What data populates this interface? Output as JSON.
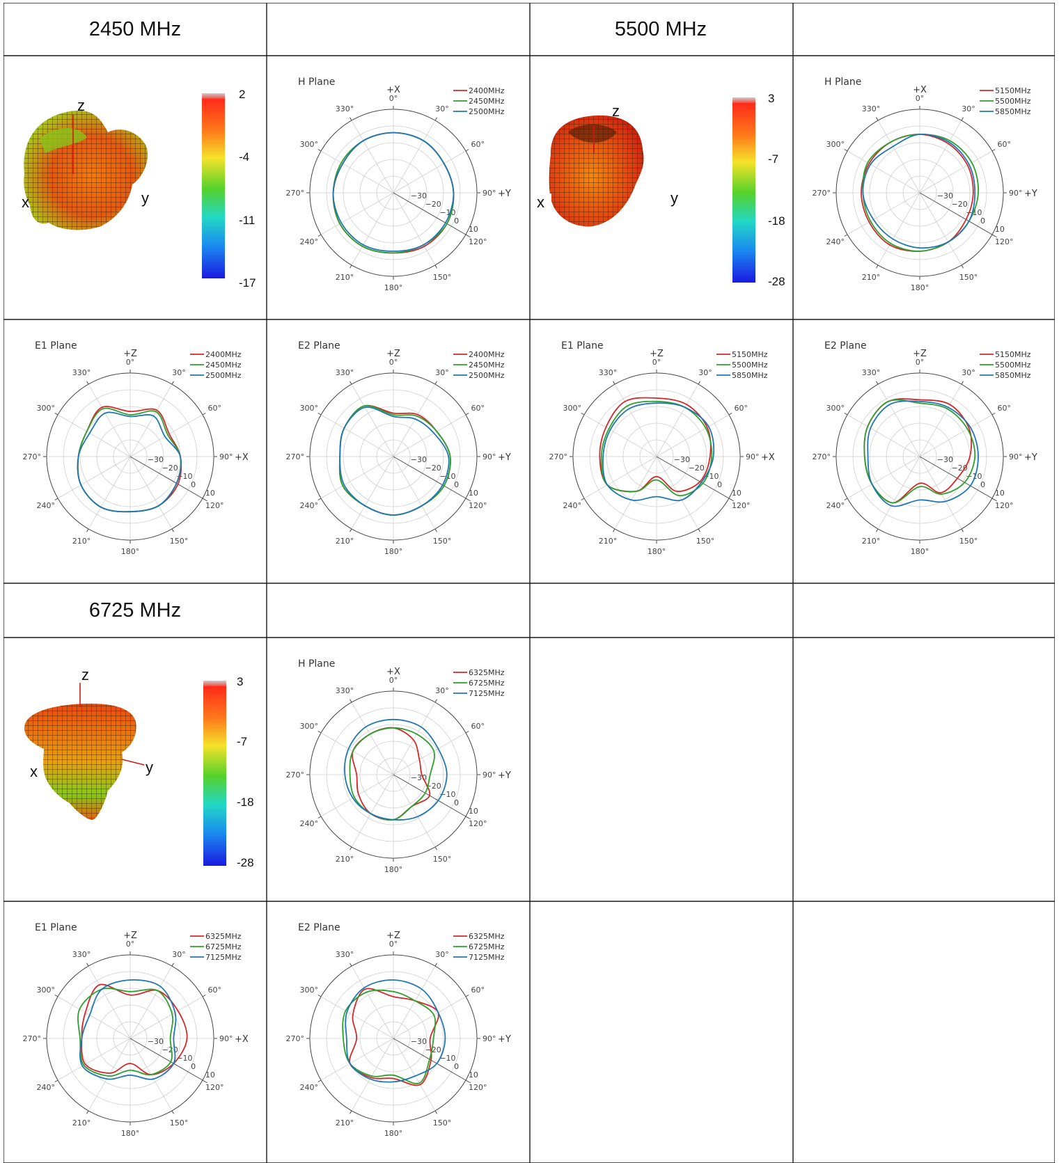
{
  "headers": [
    "2450 MHz",
    "",
    "5500 MHz",
    "",
    "6725 MHz",
    "",
    "",
    ""
  ],
  "colors": {
    "red": "#d62728",
    "green": "#2ca02c",
    "blue": "#1f77b4",
    "grid": "#cfcfcf",
    "border": "#1a1a1a"
  },
  "patterns3d": [
    {
      "band": "2450 MHz",
      "colorbar_ticks": [
        "2",
        "-4",
        "-11",
        "-17"
      ],
      "axes": [
        "z",
        "x",
        "y"
      ]
    },
    {
      "band": "5500 MHz",
      "colorbar_ticks": [
        "3",
        "-7",
        "-18",
        "-28"
      ],
      "axes": [
        "z",
        "x",
        "y"
      ]
    },
    {
      "band": "6725 MHz",
      "colorbar_ticks": [
        "3",
        "-7",
        "-18",
        "-28"
      ],
      "axes": [
        "z",
        "x",
        "y"
      ]
    }
  ],
  "chart_data": [
    {
      "id": "h_2450",
      "type": "polar",
      "title": "H Plane",
      "top_label": "+X",
      "right_label": "+Y",
      "angle_ticks": [
        "0°",
        "30°",
        "60°",
        "90°",
        "120°",
        "150°",
        "180°",
        "210°",
        "240°",
        "270°",
        "300°",
        "330°"
      ],
      "radial_ticks": [
        "−30",
        "−20",
        "−10",
        "0",
        "10"
      ],
      "rlim": [
        -40,
        10
      ],
      "series": [
        {
          "name": "2400MHz",
          "color": "red",
          "values": [
            -4,
            -4,
            -5,
            -4,
            -3,
            -3,
            -4,
            -3,
            -3,
            -4,
            -5,
            -4
          ]
        },
        {
          "name": "2450MHz",
          "color": "green",
          "values": [
            -4,
            -4,
            -5,
            -4,
            -3,
            -4,
            -4,
            -3,
            -3,
            -4,
            -4,
            -4
          ]
        },
        {
          "name": "2500MHz",
          "color": "blue",
          "values": [
            -4,
            -4,
            -5,
            -4,
            -4,
            -4,
            -5,
            -4,
            -4,
            -4,
            -5,
            -4
          ]
        }
      ]
    },
    {
      "id": "h_5500",
      "type": "polar",
      "title": "H Plane",
      "top_label": "+X",
      "right_label": "+Y",
      "angle_ticks": [
        "0°",
        "30°",
        "60°",
        "90°",
        "120°",
        "150°",
        "180°",
        "210°",
        "240°",
        "270°",
        "300°",
        "330°"
      ],
      "radial_ticks": [
        "−30",
        "−20",
        "−10",
        "0",
        "10"
      ],
      "rlim": [
        -40,
        10
      ],
      "series": [
        {
          "name": "5150MHz",
          "color": "red",
          "values": [
            -5,
            -6,
            -7,
            -8,
            -8,
            -6,
            -5,
            -4,
            -5,
            -5,
            -5,
            -5
          ]
        },
        {
          "name": "5500MHz",
          "color": "green",
          "values": [
            -5,
            -4,
            -4,
            -5,
            -6,
            -6,
            -5,
            -5,
            -6,
            -6,
            -4,
            -5
          ]
        },
        {
          "name": "5850MHz",
          "color": "blue",
          "values": [
            -5,
            -5,
            -6,
            -7,
            -6,
            -6,
            -7,
            -8,
            -8,
            -6,
            -6,
            -8
          ]
        }
      ]
    },
    {
      "id": "e1_2450",
      "type": "polar",
      "title": "E1 Plane",
      "top_label": "+Z",
      "right_label": "+X",
      "angle_ticks": [
        "0°",
        "30°",
        "60°",
        "90°",
        "120°",
        "150°",
        "180°",
        "210°",
        "240°",
        "270°",
        "300°",
        "330°"
      ],
      "radial_ticks": [
        "−30",
        "−20",
        "−10",
        "0",
        "10"
      ],
      "rlim": [
        -40,
        10
      ],
      "series": [
        {
          "name": "2400MHz",
          "color": "red",
          "values": [
            -13,
            -8,
            -13,
            -10,
            -7,
            -6,
            -7,
            -5,
            -6,
            -9,
            -10,
            -6
          ]
        },
        {
          "name": "2450MHz",
          "color": "green",
          "values": [
            -15,
            -9,
            -14,
            -10,
            -8,
            -6,
            -7,
            -5,
            -6,
            -9,
            -10,
            -7
          ]
        },
        {
          "name": "2500MHz",
          "color": "blue",
          "values": [
            -16,
            -12,
            -16,
            -10,
            -8,
            -6,
            -7,
            -5,
            -6,
            -9,
            -12,
            -10
          ]
        }
      ]
    },
    {
      "id": "e2_2450",
      "type": "polar",
      "title": "E2 Plane",
      "top_label": "+Z",
      "right_label": "+Y",
      "angle_ticks": [
        "0°",
        "30°",
        "60°",
        "90°",
        "120°",
        "150°",
        "180°",
        "210°",
        "240°",
        "270°",
        "300°",
        "330°"
      ],
      "radial_ticks": [
        "−30",
        "−20",
        "−10",
        "0",
        "10"
      ],
      "rlim": [
        -40,
        10
      ],
      "series": [
        {
          "name": "2400MHz",
          "color": "red",
          "values": [
            -14,
            -11,
            -10,
            -6,
            -5,
            -6,
            -5,
            -6,
            -5,
            -8,
            -6,
            -5
          ]
        },
        {
          "name": "2450MHz",
          "color": "green",
          "values": [
            -15,
            -12,
            -10,
            -6,
            -5,
            -6,
            -5,
            -6,
            -5,
            -8,
            -6,
            -5
          ]
        },
        {
          "name": "2500MHz",
          "color": "blue",
          "values": [
            -16,
            -14,
            -12,
            -7,
            -6,
            -6,
            -5,
            -6,
            -6,
            -8,
            -6,
            -6
          ]
        }
      ]
    },
    {
      "id": "e1_5500",
      "type": "polar",
      "title": "E1 Plane",
      "top_label": "+Z",
      "right_label": "+X",
      "angle_ticks": [
        "0°",
        "30°",
        "60°",
        "90°",
        "120°",
        "150°",
        "180°",
        "210°",
        "240°",
        "270°",
        "300°",
        "330°"
      ],
      "radial_ticks": [
        "−30",
        "−20",
        "−10",
        "0",
        "10"
      ],
      "rlim": [
        -40,
        10
      ],
      "series": [
        {
          "name": "5150MHz",
          "color": "red",
          "values": [
            -5,
            -4,
            -5,
            -8,
            -10,
            -16,
            -28,
            -16,
            -6,
            -6,
            -5,
            -2
          ]
        },
        {
          "name": "5500MHz",
          "color": "green",
          "values": [
            -7,
            -6,
            -6,
            -7,
            -8,
            -13,
            -26,
            -16,
            -6,
            -7,
            -7,
            -5
          ]
        },
        {
          "name": "5850MHz",
          "color": "blue",
          "values": [
            -8,
            -6,
            -4,
            -6,
            -9,
            -10,
            -16,
            -10,
            -6,
            -8,
            -8,
            -7
          ]
        }
      ]
    },
    {
      "id": "e2_5500",
      "type": "polar",
      "title": "E2 Plane",
      "top_label": "+Z",
      "right_label": "+Y",
      "angle_ticks": [
        "0°",
        "30°",
        "60°",
        "90°",
        "120°",
        "150°",
        "180°",
        "210°",
        "240°",
        "270°",
        "300°",
        "330°"
      ],
      "radial_ticks": [
        "−30",
        "−20",
        "−10",
        "0",
        "10"
      ],
      "rlim": [
        -40,
        10
      ],
      "series": [
        {
          "name": "5150MHz",
          "color": "red",
          "values": [
            -6,
            -4,
            -6,
            -10,
            -14,
            -15,
            -24,
            -8,
            -7,
            -7,
            -4,
            -2
          ]
        },
        {
          "name": "5500MHz",
          "color": "green",
          "values": [
            -8,
            -7,
            -7,
            -7,
            -9,
            -14,
            -22,
            -8,
            -7,
            -7,
            -4,
            -2
          ]
        },
        {
          "name": "5850MHz",
          "color": "blue",
          "values": [
            -7,
            -6,
            -5,
            -5,
            -5,
            -9,
            -14,
            -6,
            -7,
            -9,
            -6,
            -4
          ]
        }
      ]
    },
    {
      "id": "h_6725",
      "type": "polar",
      "title": "H Plane",
      "top_label": "+X",
      "right_label": "+Y",
      "angle_ticks": [
        "0°",
        "30°",
        "60°",
        "90°",
        "120°",
        "150°",
        "180°",
        "210°",
        "240°",
        "270°",
        "300°",
        "330°"
      ],
      "radial_ticks": [
        "−30",
        "−20",
        "−10",
        "0",
        "10"
      ],
      "rlim": [
        -40,
        10
      ],
      "series": [
        {
          "name": "6325MHz",
          "color": "red",
          "values": [
            -12,
            -16,
            -22,
            -23,
            -15,
            -18,
            -13,
            -13,
            -16,
            -18,
            -12,
            -12
          ]
        },
        {
          "name": "6725MHz",
          "color": "green",
          "values": [
            -12,
            -12,
            -12,
            -18,
            -18,
            -18,
            -13,
            -13,
            -13,
            -14,
            -12,
            -12
          ]
        },
        {
          "name": "7125MHz",
          "color": "blue",
          "values": [
            -7,
            -7,
            -9,
            -8,
            -9,
            -11,
            -13,
            -13,
            -12,
            -11,
            -9,
            -7
          ]
        }
      ]
    },
    {
      "id": "e1_6725",
      "type": "polar",
      "title": "E1 Plane",
      "top_label": "+Z",
      "right_label": "+X",
      "angle_ticks": [
        "0°",
        "30°",
        "60°",
        "90°",
        "120°",
        "150°",
        "180°",
        "210°",
        "240°",
        "270°",
        "300°",
        "330°"
      ],
      "radial_ticks": [
        "−30",
        "−20",
        "−10",
        "0",
        "10"
      ],
      "rlim": [
        -40,
        10
      ],
      "series": [
        {
          "name": "6325MHz",
          "color": "red",
          "values": [
            -14,
            -7,
            -7,
            -6,
            -10,
            -15,
            -25,
            -16,
            -9,
            -11,
            -9,
            -3
          ]
        },
        {
          "name": "6725MHz",
          "color": "green",
          "values": [
            -12,
            -7,
            -11,
            -16,
            -12,
            -15,
            -21,
            -14,
            -8,
            -10,
            -5,
            -6
          ]
        },
        {
          "name": "7125MHz",
          "color": "blue",
          "values": [
            -5,
            -4,
            -9,
            -14,
            -10,
            -12,
            -18,
            -12,
            -7,
            -11,
            -12,
            -6
          ]
        }
      ]
    },
    {
      "id": "e2_6725",
      "type": "polar",
      "title": "E2 Plane",
      "top_label": "+Z",
      "right_label": "+Y",
      "angle_ticks": [
        "0°",
        "30°",
        "60°",
        "90°",
        "120°",
        "150°",
        "180°",
        "210°",
        "240°",
        "270°",
        "300°",
        "330°"
      ],
      "radial_ticks": [
        "−30",
        "−20",
        "−10",
        "0",
        "10"
      ],
      "rlim": [
        -40,
        10
      ],
      "series": [
        {
          "name": "6325MHz",
          "color": "red",
          "values": [
            -15,
            -14,
            -9,
            -18,
            -14,
            -8,
            -16,
            -13,
            -10,
            -18,
            -12,
            -6
          ]
        },
        {
          "name": "6725MHz",
          "color": "green",
          "values": [
            -12,
            -14,
            -12,
            -16,
            -15,
            -9,
            -18,
            -14,
            -10,
            -10,
            -7,
            -8
          ]
        },
        {
          "name": "7125MHz",
          "color": "blue",
          "values": [
            -5,
            -6,
            -9,
            -9,
            -10,
            -14,
            -14,
            -12,
            -10,
            -12,
            -8,
            -5
          ]
        }
      ]
    }
  ]
}
